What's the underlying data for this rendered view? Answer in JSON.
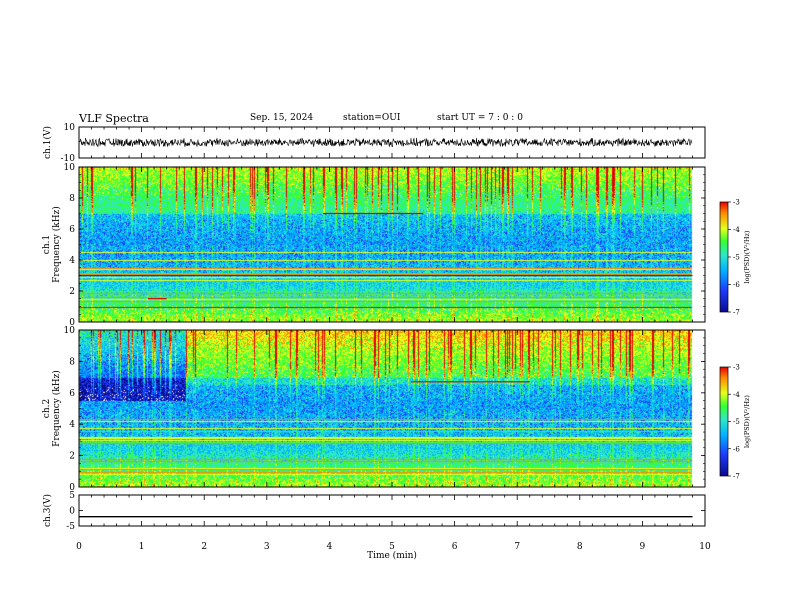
{
  "header": {
    "title": "VLF Spectra",
    "date": "Sep. 15, 2024",
    "station": "station=OUI",
    "start_ut": "start  UT =  7 : 0  : 0"
  },
  "chart_data": [
    {
      "type": "line",
      "panel": "ch1-waveform",
      "ylabel": "ch.1(V)",
      "ylim": [
        -10,
        10
      ],
      "yticks": [
        "10",
        "-10"
      ],
      "xlim": [
        0,
        10
      ],
      "series": [
        {
          "x_range": [
            0,
            9.8
          ],
          "mean": 0,
          "amplitude_envelope": [
            -3,
            3
          ]
        }
      ]
    },
    {
      "type": "heatmap",
      "panel": "ch1-spectrogram",
      "ylabel": [
        "ch.1",
        "Frequency  (kHz)"
      ],
      "ylim": [
        0,
        10
      ],
      "yticks": [
        "0",
        "2",
        "4",
        "6",
        "8",
        "10"
      ],
      "xlim": [
        0,
        10
      ],
      "colorbar": {
        "label": "log(PSD)(V²/Hz)",
        "range": [
          -7,
          -3
        ],
        "ticks": [
          "-3",
          "-4",
          "-5",
          "-6",
          "-7"
        ]
      },
      "features": [
        {
          "desc": "narrow line",
          "t": [
            3.9,
            5.5
          ],
          "f": 7.0
        },
        {
          "desc": "narrow line",
          "t": [
            1.1,
            1.4
          ],
          "f": 1.5
        },
        {
          "desc": "narrow line",
          "t": [
            0,
            9.8
          ],
          "f": 3.0
        }
      ]
    },
    {
      "type": "heatmap",
      "panel": "ch2-spectrogram",
      "ylabel": [
        "ch.2",
        "Frequency  (kHz)"
      ],
      "ylim": [
        0,
        10
      ],
      "yticks": [
        "0",
        "2",
        "4",
        "6",
        "8",
        "10"
      ],
      "xlim": [
        0,
        10
      ],
      "colorbar": {
        "label": "log(PSD)(V²/Hz)",
        "range": [
          -7,
          -3
        ],
        "ticks": [
          "-3",
          "-4",
          "-5",
          "-6",
          "-7"
        ]
      },
      "features": [
        {
          "desc": "broadband onset",
          "t": 1.75
        },
        {
          "desc": "narrow line",
          "t": [
            5.3,
            7.2
          ],
          "f": 6.7
        }
      ]
    },
    {
      "type": "line",
      "panel": "ch3-waveform",
      "ylabel": "ch.3(V)",
      "ylim": [
        -5,
        5
      ],
      "yticks": [
        "5",
        "0",
        "-5"
      ],
      "xlabel": "Time  (min)",
      "xlim": [
        0,
        10
      ],
      "xticks": [
        "0",
        "1",
        "2",
        "3",
        "4",
        "5",
        "6",
        "7",
        "8",
        "9",
        "10"
      ],
      "series": [
        {
          "x_range": [
            0,
            9.8
          ],
          "value": -2
        }
      ]
    }
  ],
  "colors": {
    "colormap": [
      "#0a0a8c",
      "#1c3cff",
      "#00b4ff",
      "#2ee8c8",
      "#33ff33",
      "#e6ff1a",
      "#ff8a00",
      "#e60000"
    ],
    "trace": "#000000"
  }
}
